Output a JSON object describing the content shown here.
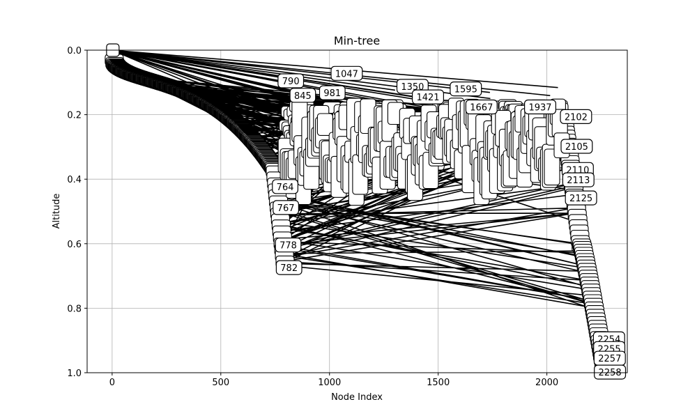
{
  "chart_data": {
    "type": "scatter",
    "title": "Min-tree",
    "xlabel": "Node Index",
    "ylabel": "Altitude",
    "xlim": [
      -115,
      2370
    ],
    "ylim": [
      1.0,
      0.0
    ],
    "y_inverted": true,
    "grid": true,
    "x_ticks": [
      0,
      500,
      1000,
      1500,
      2000
    ],
    "x_tick_labels": [
      "0",
      "500",
      "1000",
      "1500",
      "2000"
    ],
    "y_ticks": [
      0.0,
      0.2,
      0.4,
      0.6,
      0.8,
      1.0
    ],
    "y_tick_labels": [
      "0.0",
      "0.2",
      "0.4",
      "0.6",
      "0.8",
      "1.0"
    ],
    "labeled_nodes": [
      {
        "label": "790",
        "x": 790,
        "y": 0.095
      },
      {
        "label": "845",
        "x": 845,
        "y": 0.14
      },
      {
        "label": "981",
        "x": 981,
        "y": 0.132
      },
      {
        "label": "1047",
        "x": 1047,
        "y": 0.072
      },
      {
        "label": "1350",
        "x": 1350,
        "y": 0.112
      },
      {
        "label": "1421",
        "x": 1421,
        "y": 0.145
      },
      {
        "label": "1595",
        "x": 1595,
        "y": 0.12
      },
      {
        "label": "1667",
        "x": 1667,
        "y": 0.176
      },
      {
        "label": "1937",
        "x": 1937,
        "y": 0.176
      },
      {
        "label": "2102",
        "x": 2102,
        "y": 0.206
      },
      {
        "label": "2105",
        "x": 2105,
        "y": 0.298
      },
      {
        "label": "2110",
        "x": 2110,
        "y": 0.37
      },
      {
        "label": "2113",
        "x": 2113,
        "y": 0.402
      },
      {
        "label": "2125",
        "x": 2125,
        "y": 0.458
      },
      {
        "label": "764",
        "x": 764,
        "y": 0.423
      },
      {
        "label": "767",
        "x": 767,
        "y": 0.488
      },
      {
        "label": "778",
        "x": 778,
        "y": 0.604
      },
      {
        "label": "782",
        "x": 782,
        "y": 0.674
      },
      {
        "label": "2254",
        "x": 2254,
        "y": 0.895
      },
      {
        "label": "2255",
        "x": 2255,
        "y": 0.925
      },
      {
        "label": "2257",
        "x": 2257,
        "y": 0.955
      },
      {
        "label": "2258",
        "x": 2258,
        "y": 0.998
      }
    ]
  }
}
